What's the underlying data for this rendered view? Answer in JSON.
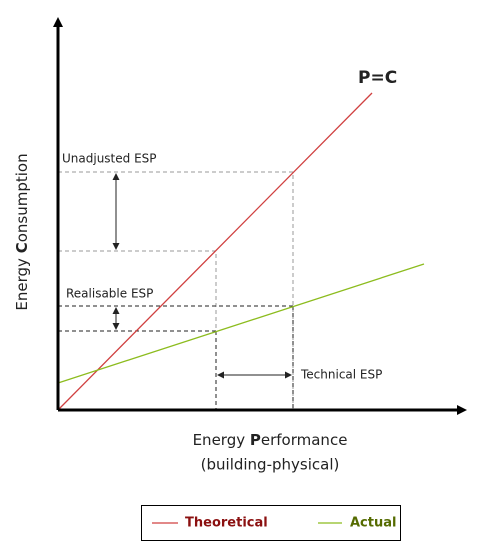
{
  "diagram": {
    "top_label": "P=C",
    "y_axis_label": {
      "pre": "Energy ",
      "bold": "C",
      "post": "onsumption"
    },
    "x_axis_label": {
      "pre": "Energy ",
      "bold": "P",
      "post": "erformance",
      "line2": "(building-physical)"
    },
    "annotations": [
      "Unadjusted ESP",
      "Realisable ESP",
      "Technical ESP"
    ],
    "legend": [
      "Theoretical",
      "Actual"
    ]
  }
}
